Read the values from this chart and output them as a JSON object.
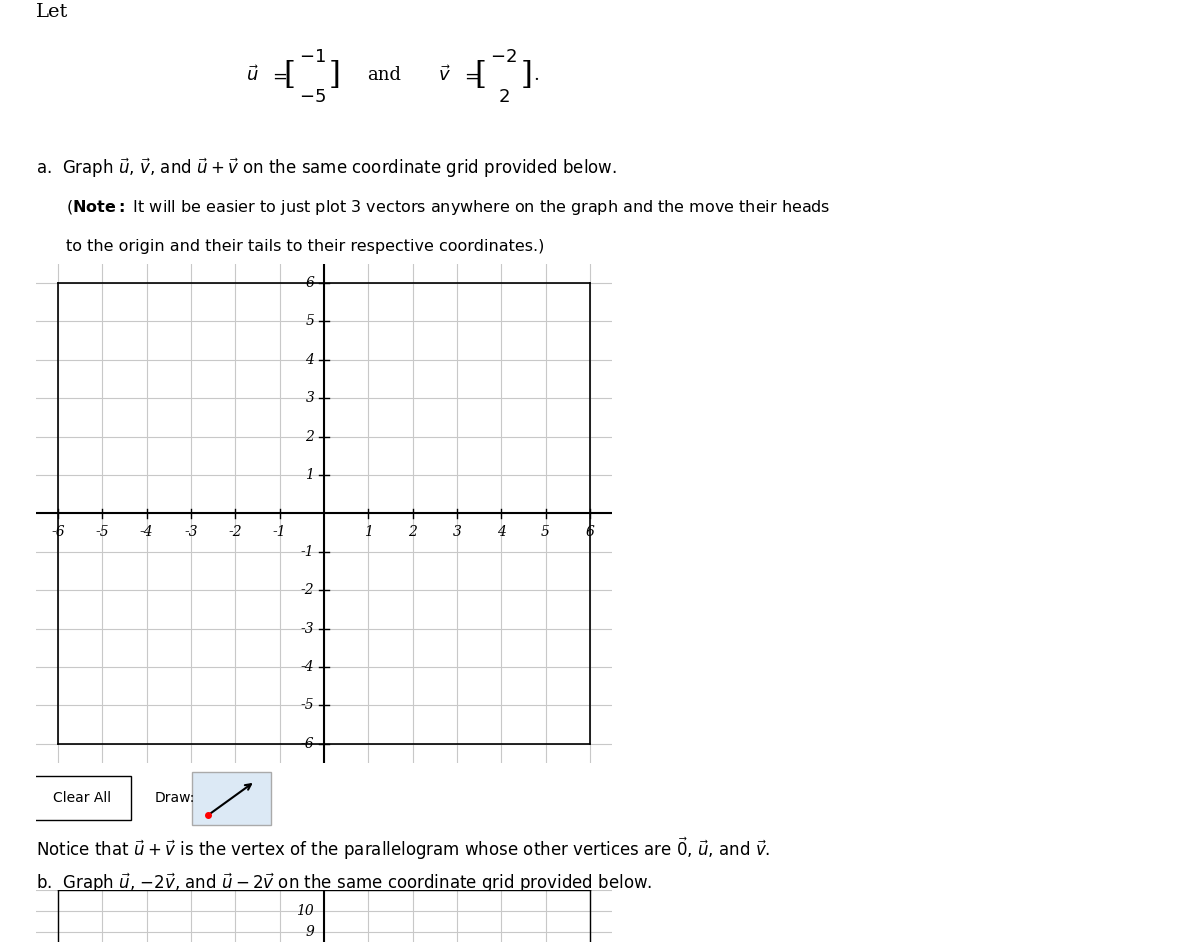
{
  "background_color": "#ffffff",
  "page_width": 12.0,
  "page_height": 9.42,
  "text_color": "#000000",
  "let_text": "Let",
  "u_vec": [
    -1,
    -5
  ],
  "v_vec": [
    -2,
    2
  ],
  "grid_xlim": [
    -6,
    6
  ],
  "grid_ylim": [
    -6,
    6
  ],
  "grid_xticks": [
    -6,
    -5,
    -4,
    -3,
    -2,
    -1,
    0,
    1,
    2,
    3,
    4,
    5,
    6
  ],
  "grid_yticks": [
    -6,
    -5,
    -4,
    -3,
    -2,
    -1,
    0,
    1,
    2,
    3,
    4,
    5,
    6
  ],
  "grid_color": "#c8c8c8",
  "axis_color": "#000000",
  "notice_text": "Notice that $\\vec{u} + \\vec{v}$ is the vertex of the parallelogram whose other vertices are $\\vec{0}$, $\\vec{u}$, and $\\vec{v}$.",
  "part_b_text": "b.  Graph $\\vec{u}$, $-2\\vec{v}$, and $\\vec{u} - 2\\vec{v}$ on the same coordinate grid provided below.",
  "clear_all_text": "Clear All",
  "draw_text": "Draw:",
  "arrow_red_dot_color": "#ff0000",
  "button_bg": "#dce9f5",
  "part_b_grid_yticks": [
    9,
    10
  ]
}
